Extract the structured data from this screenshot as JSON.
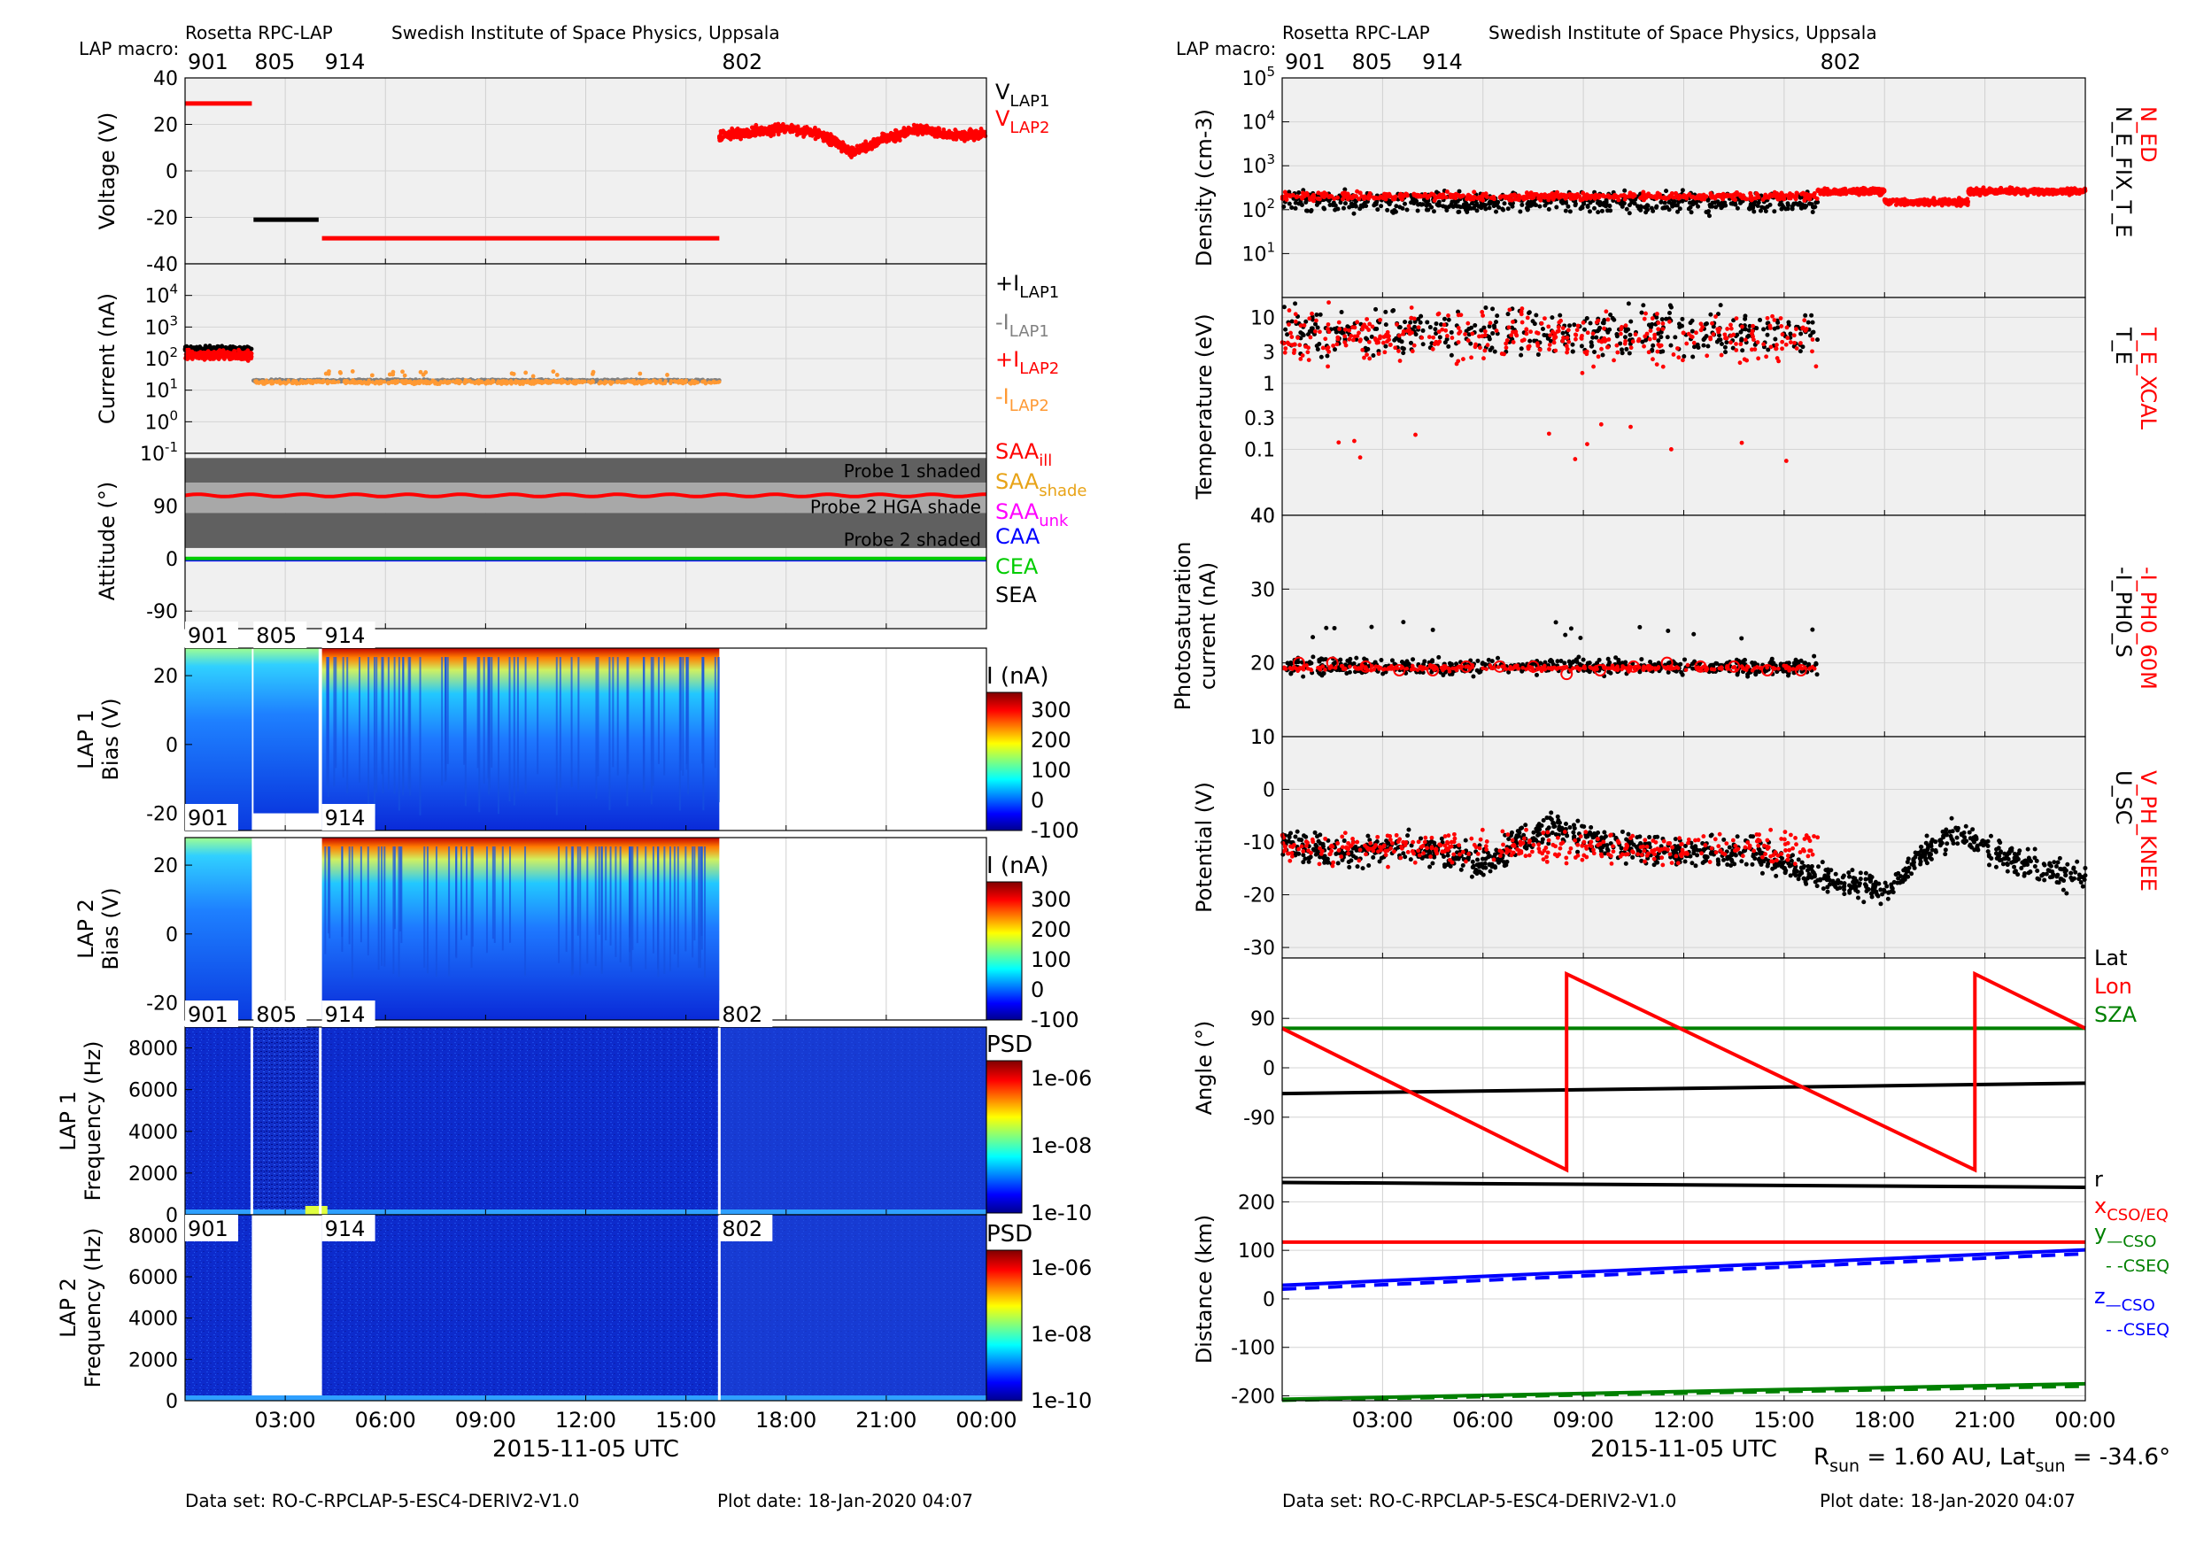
{
  "header": {
    "mission": "Rosetta RPC-LAP",
    "institute": "Swedish Institute of Space Physics, Uppsala",
    "macro_label": "LAP macro:"
  },
  "footer": {
    "dataset": "Data set: RO-C-RPCLAP-5-ESC4-DERIV2-V1.0",
    "plot_date": "Plot date: 18-Jan-2020 04:07",
    "sun_info": "R_sun = 1.60 AU, Lat_sun = -34.6°"
  },
  "time_axis": {
    "xlabel": "2015-11-05 UTC",
    "hour_range": [
      0,
      24
    ],
    "ticks": [
      "03:00",
      "06:00",
      "09:00",
      "12:00",
      "15:00",
      "18:00",
      "21:00",
      "00:00"
    ],
    "tick_hours": [
      3,
      6,
      9,
      12,
      15,
      18,
      21,
      24
    ]
  },
  "macros": [
    {
      "label": "901",
      "start_h": 0.0
    },
    {
      "label": "805",
      "start_h": 2.0
    },
    {
      "label": "914",
      "start_h": 4.1
    },
    {
      "label": "802",
      "start_h": 16.0
    }
  ],
  "colors": {
    "panel_bg": "#f0f0f0",
    "black": "#000000",
    "red": "#ff0000",
    "gray": "#808080",
    "orange": "#ff9933",
    "magenta": "#ff00ff",
    "blue": "#0000ff",
    "green": "#00cc00",
    "dark_green": "#008000",
    "yellow": "#e8a317"
  },
  "chart_data": [
    {
      "id": "voltage",
      "type": "line",
      "ylabel": "Voltage (V)",
      "ylim": [
        -40,
        40
      ],
      "yticks": [
        "-40",
        "-20",
        "0",
        "20",
        "40"
      ],
      "legend": [
        "V_LAP1",
        "V_LAP2"
      ],
      "series": [
        {
          "name": "V_LAP2",
          "segments": [
            {
              "x": [
                0.0,
                2.0
              ],
              "y": [
                29,
                29
              ]
            },
            {
              "x": [
                4.1,
                16.0
              ],
              "y": [
                -29,
                -29
              ]
            }
          ]
        },
        {
          "name": "V_LAP1",
          "segments": [
            {
              "x": [
                2.0,
                4.0
              ],
              "y": [
                -21,
                -21
              ]
            }
          ]
        },
        {
          "name": "V_LAP2 (802)",
          "range_h": [
            16.0,
            24.0
          ],
          "x": [
            16,
            17,
            18,
            19,
            20,
            21,
            22,
            23,
            24
          ],
          "y": [
            15,
            17,
            18,
            16,
            8,
            14,
            18,
            15,
            16
          ]
        }
      ]
    },
    {
      "id": "current",
      "type": "scatter",
      "yscale": "log",
      "ylabel": "Current (nA)",
      "ylim": [
        0.1,
        100000
      ],
      "legend": [
        "+I_LAP1",
        "-I_LAP1",
        "+I_LAP2",
        "-I_LAP2"
      ],
      "series": [
        {
          "name": "+I_LAP1",
          "range_h": [
            0.0,
            2.0
          ],
          "level": 200
        },
        {
          "name": "+I_LAP2",
          "range_h": [
            0.0,
            2.0
          ],
          "level": 150
        },
        {
          "name": "-I_LAP1",
          "range_h": [
            2.0,
            16.0
          ],
          "level": 20
        },
        {
          "name": "-I_LAP2",
          "range_h": [
            2.0,
            16.0
          ],
          "level": 17
        }
      ]
    },
    {
      "id": "attitude",
      "type": "line",
      "ylabel": "Attitude (°)",
      "ylim": [
        -120,
        180
      ],
      "yticks": [
        "-90",
        "0",
        "90"
      ],
      "legend": [
        "SAA_ill",
        "SAA_shade",
        "SAA_unk",
        "CAA",
        "CEA",
        "SEA"
      ],
      "annotations": [
        "Probe 1 shaded",
        "Probe 2 HGA shade",
        "Probe 2 shaded"
      ],
      "series": [
        {
          "name": "SAA_ill",
          "level": 108
        },
        {
          "name": "CEA",
          "level": 0
        },
        {
          "name": "CAA",
          "level": -2
        }
      ]
    },
    {
      "id": "lap1_sweep",
      "type": "heatmap",
      "ylabel": "LAP 1 Bias (V)",
      "ylim": [
        -25,
        28
      ],
      "yticks": [
        "-20",
        "0",
        "20"
      ],
      "colorbar": {
        "label": "I (nA)",
        "ticks": [
          "300",
          "200",
          "100",
          "0",
          "-100"
        ]
      },
      "data_range_h": [
        0.0,
        16.0
      ],
      "labels_top": [
        "901",
        "805",
        "914"
      ],
      "labels_bottom": [
        "901",
        "914"
      ]
    },
    {
      "id": "lap2_sweep",
      "type": "heatmap",
      "ylabel": "LAP 2 Bias (V)",
      "ylim": [
        -25,
        28
      ],
      "yticks": [
        "-20",
        "0",
        "20"
      ],
      "colorbar": {
        "label": "I (nA)",
        "ticks": [
          "300",
          "200",
          "100",
          "0",
          "-100"
        ]
      },
      "data_range_h": [
        0.0,
        16.0
      ],
      "gap_h": [
        2.0,
        4.0
      ]
    },
    {
      "id": "lap1_psd",
      "type": "heatmap",
      "ylabel": "LAP 1 Frequency (Hz)",
      "ylim": [
        0,
        9000
      ],
      "yticks": [
        "0",
        "2000",
        "4000",
        "6000",
        "8000"
      ],
      "colorbar": {
        "label": "PSD",
        "ticks": [
          "1e-06",
          "1e-08",
          "1e-10"
        ]
      },
      "labels_top": [
        "901",
        "805",
        "914",
        "802"
      ]
    },
    {
      "id": "lap2_psd",
      "type": "heatmap",
      "ylabel": "LAP 2 Frequency (Hz)",
      "ylim": [
        0,
        9000
      ],
      "yticks": [
        "0",
        "2000",
        "4000",
        "6000",
        "8000"
      ],
      "colorbar": {
        "label": "PSD",
        "ticks": [
          "1e-06",
          "1e-08",
          "1e-10"
        ]
      },
      "labels_top": [
        "901",
        "914",
        "802"
      ],
      "gap_h": [
        2.0,
        4.0
      ]
    },
    {
      "id": "density",
      "type": "scatter",
      "yscale": "log",
      "ylabel": "Density (cm^-3)",
      "ylim": [
        1,
        100000
      ],
      "legend": [
        "N_ED",
        "N_E_FIX_T_E"
      ],
      "series": [
        {
          "name": "N_ED",
          "range_h": [
            0.0,
            24.0
          ],
          "level": 200
        },
        {
          "name": "N_E_FIX_T_E",
          "range_h": [
            0.0,
            16.0
          ],
          "level": 120
        }
      ]
    },
    {
      "id": "temperature",
      "type": "scatter",
      "yscale": "log",
      "ylabel": "Temperature (eV)",
      "ylim": [
        0.01,
        20
      ],
      "yticks": [
        "10",
        "3",
        "1",
        "0.3",
        "0.1"
      ],
      "legend": [
        "T_E_XCAL",
        "T_E"
      ],
      "series": [
        {
          "name": "T_E_XCAL",
          "range_h": [
            0.0,
            16.0
          ],
          "level": 5
        },
        {
          "name": "T_E",
          "range_h": [
            0.0,
            16.0
          ],
          "level": 6
        }
      ]
    },
    {
      "id": "photosat",
      "type": "scatter",
      "ylabel": "Photosaturation current (nA)",
      "ylim": [
        10,
        40
      ],
      "yticks": [
        "10",
        "20",
        "30",
        "40"
      ],
      "legend": [
        "-I_PH0_60M",
        "-I_PH0_S"
      ],
      "series": [
        {
          "name": "-I_PH0_S",
          "range_h": [
            0.0,
            16.0
          ],
          "level": 19.5
        },
        {
          "name": "-I_PH0_60M",
          "x": [
            0.5,
            1.5,
            2.5,
            3.5,
            4.5,
            5.5,
            6.5,
            7.5,
            8.5,
            9.5,
            10.5,
            11.5,
            12.5,
            13.5,
            14.5,
            15.5
          ],
          "y": [
            20,
            20,
            19.5,
            19,
            19,
            19.5,
            19.5,
            19.5,
            18.5,
            19,
            19.5,
            20,
            19.5,
            19.5,
            19,
            19
          ]
        }
      ]
    },
    {
      "id": "potential",
      "type": "scatter",
      "ylabel": "Potential (V)",
      "ylim": [
        -32,
        10
      ],
      "yticks": [
        "-30",
        "-20",
        "-10",
        "0",
        "10"
      ],
      "legend": [
        "V_PH_KNEE",
        "U_SC"
      ],
      "series": [
        {
          "name": "V_PH_KNEE",
          "range_h": [
            0.0,
            16.0
          ],
          "level": -11
        },
        {
          "name": "U_SC",
          "x": [
            0,
            2,
            4,
            6,
            8,
            10,
            12,
            14,
            16,
            18,
            20,
            22,
            24
          ],
          "y": [
            -10,
            -12,
            -11,
            -14,
            -7,
            -11,
            -12,
            -12,
            -17,
            -19,
            -8,
            -14,
            -17
          ]
        }
      ]
    },
    {
      "id": "angle",
      "type": "line",
      "ylabel": "Angle (°)",
      "ylim": [
        -200,
        200
      ],
      "yticks": [
        "-90",
        "0",
        "90"
      ],
      "legend": [
        "Lat",
        "Lon",
        "SZA"
      ],
      "series": [
        {
          "name": "Lat",
          "x": [
            0,
            24
          ],
          "y": [
            -47,
            -28
          ]
        },
        {
          "name": "SZA",
          "x": [
            0,
            24
          ],
          "y": [
            72,
            72
          ]
        },
        {
          "name": "Lon",
          "x": [
            0,
            8.5,
            8.5,
            20.7,
            20.7,
            24.0
          ],
          "y": [
            72,
            -186,
            171,
            -186,
            171,
            72
          ]
        }
      ]
    },
    {
      "id": "distance",
      "type": "line",
      "ylabel": "Distance (km)",
      "ylim": [
        -210,
        250
      ],
      "yticks": [
        "-200",
        "-100",
        "0",
        "100",
        "200"
      ],
      "legend": [
        "r",
        "x_CSO/EQ",
        "y—CSO",
        "- -CSEQ",
        "z—CSO",
        "- -CSEQ"
      ],
      "series": [
        {
          "name": "r",
          "x": [
            0,
            24
          ],
          "y": [
            240,
            230
          ]
        },
        {
          "name": "x_CSO/EQ",
          "x": [
            0,
            24
          ],
          "y": [
            117,
            117
          ]
        },
        {
          "name": "z_CSO",
          "x": [
            0,
            24
          ],
          "y": [
            28,
            101
          ]
        },
        {
          "name": "z_CSEQ",
          "x": [
            0,
            24
          ],
          "y": [
            20,
            93
          ]
        },
        {
          "name": "y_CSO",
          "x": [
            0,
            24
          ],
          "y": [
            -207,
            -175
          ]
        },
        {
          "name": "y_CSEQ",
          "x": [
            0,
            24
          ],
          "y": [
            -209,
            -180
          ]
        }
      ]
    }
  ]
}
